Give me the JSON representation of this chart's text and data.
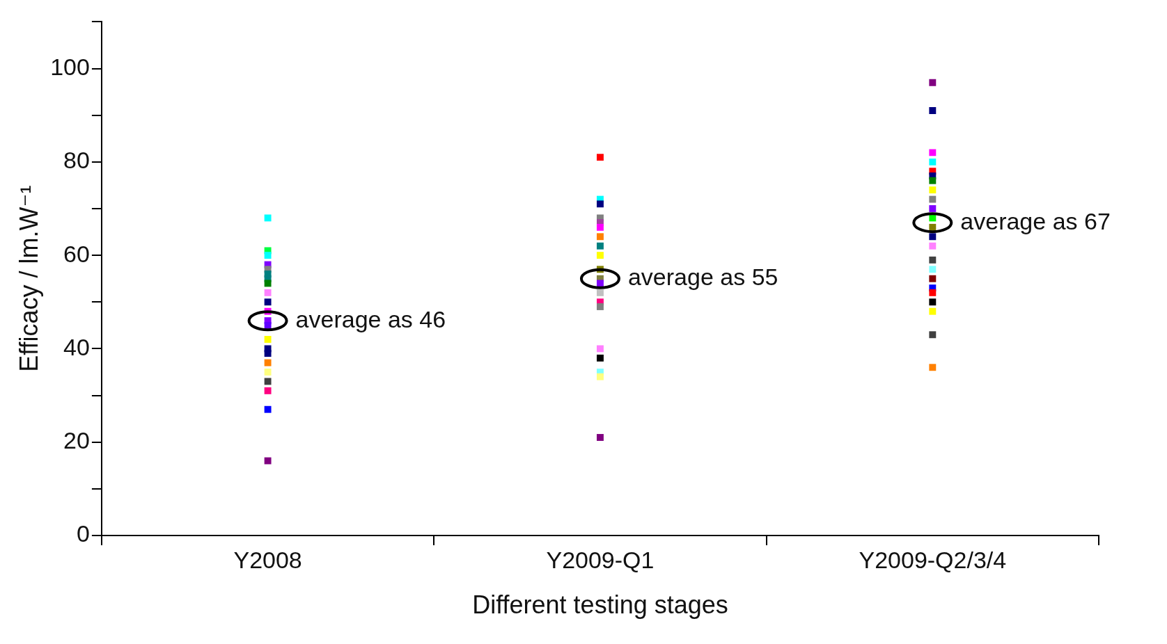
{
  "chart_data": {
    "type": "scatter",
    "xlabel": "Different testing stages",
    "ylabel": "Efficacy / lm.W⁻¹",
    "categories": [
      "Y2008",
      "Y2009-Q1",
      "Y2009-Q2/3/4"
    ],
    "ylim": [
      0,
      110
    ],
    "yticks": [
      0,
      {
        "value": 10,
        "label": null
      },
      20,
      {
        "value": 30,
        "label": null
      },
      40,
      {
        "value": 50,
        "label": null
      },
      60,
      {
        "value": 70,
        "label": null
      },
      80,
      {
        "value": 90,
        "label": null
      },
      100,
      {
        "value": 110,
        "label": null
      }
    ],
    "grid": false,
    "legend": false,
    "marker": "square",
    "series": [
      {
        "x": [
          "Y2008",
          "Y2008",
          "Y2008",
          "Y2008",
          "Y2008",
          "Y2008",
          "Y2008",
          "Y2008",
          "Y2008",
          "Y2008",
          "Y2008",
          "Y2008",
          "Y2008",
          "Y2008",
          "Y2008",
          "Y2008",
          "Y2008",
          "Y2008",
          "Y2008",
          "Y2008",
          "Y2008",
          "Y2008"
        ],
        "values": [
          68,
          61,
          60,
          58,
          57,
          56,
          55,
          54,
          52,
          50,
          48,
          46,
          45,
          42,
          40,
          39,
          37,
          35,
          33,
          31,
          27,
          16
        ],
        "colors": [
          "#00ffff",
          "#00ff40",
          "#00ffff",
          "#8000ff",
          "#808080",
          "#008080",
          "#008080",
          "#008000",
          "#ff80ff",
          "#000080",
          "#ff00ff",
          "#8000ff",
          "#6000ff",
          "#ffff00",
          "#000080",
          "#000080",
          "#ff8000",
          "#ffff80",
          "#404040",
          "#ff0080",
          "#0000ff",
          "#800080"
        ]
      },
      {
        "x": [
          "Y2009-Q1",
          "Y2009-Q1",
          "Y2009-Q1",
          "Y2009-Q1",
          "Y2009-Q1",
          "Y2009-Q1",
          "Y2009-Q1",
          "Y2009-Q1",
          "Y2009-Q1",
          "Y2009-Q1",
          "Y2009-Q1",
          "Y2009-Q1",
          "Y2009-Q1",
          "Y2009-Q1",
          "Y2009-Q1",
          "Y2009-Q1",
          "Y2009-Q1",
          "Y2009-Q1",
          "Y2009-Q1",
          "Y2009-Q1"
        ],
        "values": [
          81,
          72,
          71,
          68,
          67,
          66,
          64,
          62,
          60,
          57,
          55,
          54,
          52,
          50,
          49,
          40,
          38,
          35,
          34,
          21
        ],
        "colors": [
          "#ff0000",
          "#00ffff",
          "#000080",
          "#808080",
          "#a040a0",
          "#ff00ff",
          "#ff8000",
          "#008080",
          "#ffff00",
          "#808000",
          "#808040",
          "#8000ff",
          "#c0c0c0",
          "#ff0080",
          "#808080",
          "#ff80ff",
          "#000000",
          "#80ffff",
          "#ffff80",
          "#800080"
        ]
      },
      {
        "x": [
          "Y2009-Q2/3/4",
          "Y2009-Q2/3/4",
          "Y2009-Q2/3/4",
          "Y2009-Q2/3/4",
          "Y2009-Q2/3/4",
          "Y2009-Q2/3/4",
          "Y2009-Q2/3/4",
          "Y2009-Q2/3/4",
          "Y2009-Q2/3/4",
          "Y2009-Q2/3/4",
          "Y2009-Q2/3/4",
          "Y2009-Q2/3/4",
          "Y2009-Q2/3/4",
          "Y2009-Q2/3/4",
          "Y2009-Q2/3/4",
          "Y2009-Q2/3/4",
          "Y2009-Q2/3/4",
          "Y2009-Q2/3/4",
          "Y2009-Q2/3/4",
          "Y2009-Q2/3/4",
          "Y2009-Q2/3/4",
          "Y2009-Q2/3/4",
          "Y2009-Q2/3/4"
        ],
        "values": [
          97,
          91,
          82,
          80,
          78,
          77,
          76,
          74,
          72,
          70,
          68,
          66,
          64,
          62,
          59,
          57,
          55,
          53,
          52,
          50,
          48,
          43,
          36
        ],
        "colors": [
          "#800080",
          "#000080",
          "#ff00ff",
          "#00ffff",
          "#ff0000",
          "#000080",
          "#008000",
          "#ffff00",
          "#808080",
          "#8000ff",
          "#00ff00",
          "#808000",
          "#000080",
          "#ff80ff",
          "#404040",
          "#80ffff",
          "#800000",
          "#0000ff",
          "#ff0000",
          "#000000",
          "#ffff00",
          "#404040",
          "#ff8000"
        ]
      }
    ],
    "annotations": [
      {
        "text": "average as 46",
        "x": "Y2008",
        "y": 46
      },
      {
        "text": "average as 55",
        "x": "Y2009-Q1",
        "y": 55
      },
      {
        "text": "average as 67",
        "x": "Y2009-Q2/3/4",
        "y": 67
      }
    ]
  }
}
